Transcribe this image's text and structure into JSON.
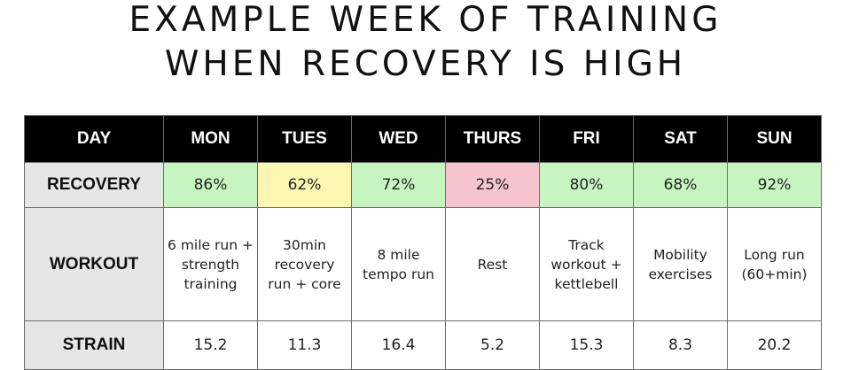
{
  "title": {
    "line1": "EXAMPLE WEEK OF TRAINING",
    "line2": "WHEN RECOVERY IS HIGH"
  },
  "table": {
    "header": [
      "DAY",
      "MON",
      "TUES",
      "WED",
      "THURS",
      "FRI",
      "SAT",
      "SUN"
    ],
    "recovery": {
      "label": "RECOVERY",
      "values": [
        "86%",
        "62%",
        "72%",
        "25%",
        "80%",
        "68%",
        "92%"
      ],
      "colors": [
        "#c6f5c1",
        "#fdf6b3",
        "#c6f5c1",
        "#f5c4cc",
        "#c6f5c1",
        "#c6f5c1",
        "#c6f5c1"
      ]
    },
    "workout": {
      "label": "WORKOUT",
      "values": [
        "6 mile run + strength training",
        "30min recovery run + core",
        "8 mile tempo run",
        "Rest",
        "Track workout + kettlebell",
        "Mobility exercises",
        "Long run (60+min)"
      ]
    },
    "strain": {
      "label": "STRAIN",
      "values": [
        "15.2",
        "11.3",
        "16.4",
        "5.2",
        "15.3",
        "8.3",
        "20.2"
      ]
    }
  }
}
